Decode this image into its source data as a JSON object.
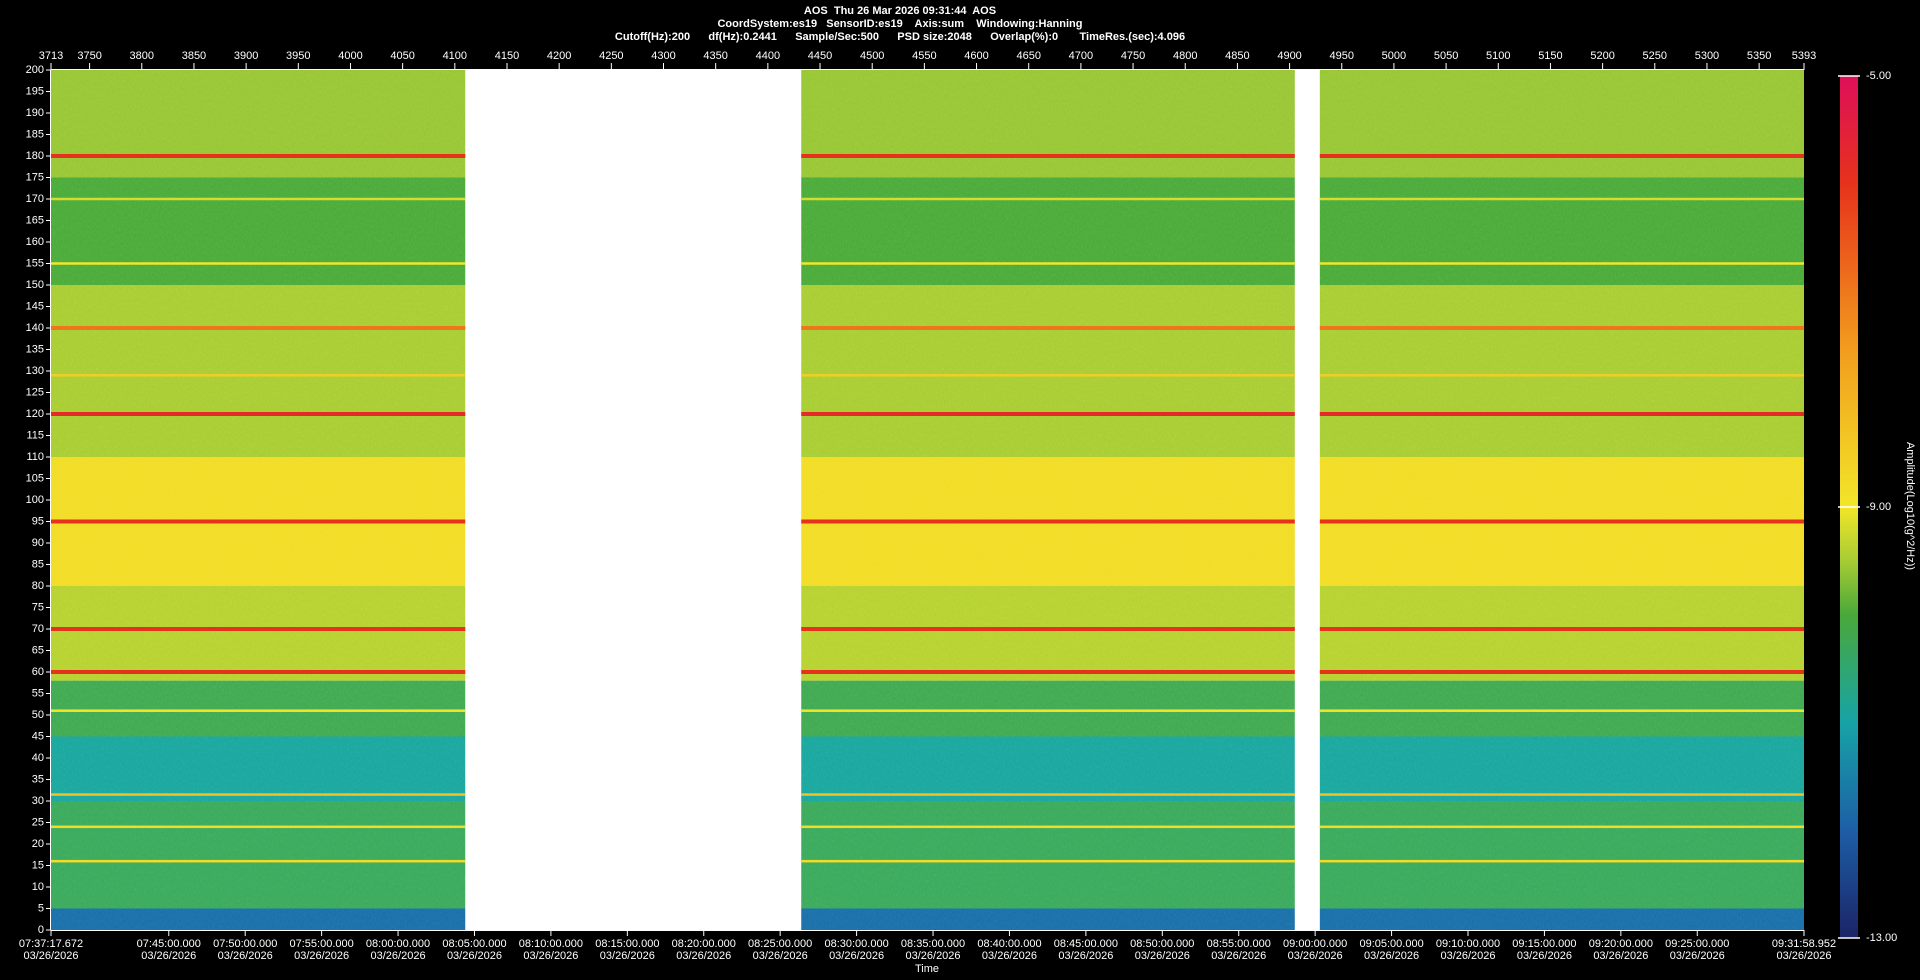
{
  "chart_data": {
    "type": "spectrogram",
    "title": "AOS  Thu 26 Mar 2026 09:31:44  AOS",
    "subtitle": [
      "CoordSystem:es19   SensorID:es19    Axis:sum    Windowing:Hanning",
      "Cutoff(Hz):200      df(Hz):0.2441      Sample/Sec:500      PSD size:2048      Overlap(%):0       TimeRes.(sec):4.096"
    ],
    "xlabel": "Time",
    "colorbar_label": "Amplitude(Log10(g^2/Hz))",
    "xlim": [
      3713,
      5393
    ],
    "xticks": [
      3713,
      3750,
      3800,
      3850,
      3900,
      3950,
      4000,
      4050,
      4100,
      4150,
      4200,
      4250,
      4300,
      4350,
      4400,
      4450,
      4500,
      4550,
      4600,
      4650,
      4700,
      4750,
      4800,
      4850,
      4900,
      4950,
      5000,
      5050,
      5100,
      5150,
      5200,
      5250,
      5300,
      5350,
      5393
    ],
    "x2lim": [
      27437.672,
      34318.952
    ],
    "x2ticks": [
      {
        "value": 27437.672,
        "label": [
          "07:37:17.672",
          "03/26/2026"
        ]
      },
      {
        "value": 27900,
        "label": [
          "07:45:00.000",
          "03/26/2026"
        ]
      },
      {
        "value": 28200,
        "label": [
          "07:50:00.000",
          "03/26/2026"
        ]
      },
      {
        "value": 28500,
        "label": [
          "07:55:00.000",
          "03/26/2026"
        ]
      },
      {
        "value": 28800,
        "label": [
          "08:00:00.000",
          "03/26/2026"
        ]
      },
      {
        "value": 29100,
        "label": [
          "08:05:00.000",
          "03/26/2026"
        ]
      },
      {
        "value": 29400,
        "label": [
          "08:10:00.000",
          "03/26/2026"
        ]
      },
      {
        "value": 29700,
        "label": [
          "08:15:00.000",
          "03/26/2026"
        ]
      },
      {
        "value": 30000,
        "label": [
          "08:20:00.000",
          "03/26/2026"
        ]
      },
      {
        "value": 30300,
        "label": [
          "08:25:00.000",
          "03/26/2026"
        ]
      },
      {
        "value": 30600,
        "label": [
          "08:30:00.000",
          "03/26/2026"
        ]
      },
      {
        "value": 30900,
        "label": [
          "08:35:00.000",
          "03/26/2026"
        ]
      },
      {
        "value": 31200,
        "label": [
          "08:40:00.000",
          "03/26/2026"
        ]
      },
      {
        "value": 31500,
        "label": [
          "08:45:00.000",
          "03/26/2026"
        ]
      },
      {
        "value": 31800,
        "label": [
          "08:50:00.000",
          "03/26/2026"
        ]
      },
      {
        "value": 32100,
        "label": [
          "08:55:00.000",
          "03/26/2026"
        ]
      },
      {
        "value": 32400,
        "label": [
          "09:00:00.000",
          "03/26/2026"
        ]
      },
      {
        "value": 32700,
        "label": [
          "09:05:00.000",
          "03/26/2026"
        ]
      },
      {
        "value": 33000,
        "label": [
          "09:10:00.000",
          "03/26/2026"
        ]
      },
      {
        "value": 33300,
        "label": [
          "09:15:00.000",
          "03/26/2026"
        ]
      },
      {
        "value": 33600,
        "label": [
          "09:20:00.000",
          "03/26/2026"
        ]
      },
      {
        "value": 33900,
        "label": [
          "09:25:00.000",
          "03/26/2026"
        ]
      },
      {
        "value": 34318.952,
        "label": [
          "09:31:58.952",
          "03/26/2026"
        ]
      }
    ],
    "ylim": [
      0,
      200
    ],
    "yticks": [
      0,
      5,
      10,
      15,
      20,
      25,
      30,
      35,
      40,
      45,
      50,
      55,
      60,
      65,
      70,
      75,
      80,
      85,
      90,
      95,
      100,
      105,
      110,
      115,
      120,
      125,
      130,
      135,
      140,
      145,
      150,
      155,
      160,
      165,
      170,
      175,
      180,
      185,
      190,
      195,
      200
    ],
    "clim": [
      -13,
      -5
    ],
    "cticks": [
      {
        "value": -5,
        "label": "-5.00"
      },
      {
        "value": -9,
        "label": "-9.00"
      },
      {
        "value": -13,
        "label": "-13.00"
      }
    ],
    "colormap": [
      {
        "value": -13,
        "color": "#1b2466"
      },
      {
        "value": -12,
        "color": "#1d5ea6"
      },
      {
        "value": -11,
        "color": "#17a3a6"
      },
      {
        "value": -10,
        "color": "#4aa83a"
      },
      {
        "value": -9.5,
        "color": "#a6cc34"
      },
      {
        "value": -9,
        "color": "#f2e629"
      },
      {
        "value": -7.5,
        "color": "#f29a1d"
      },
      {
        "value": -6,
        "color": "#e6321c"
      },
      {
        "value": -5,
        "color": "#de0f5a"
      }
    ],
    "segments": [
      [
        3713,
        4110
      ],
      [
        4432,
        4905
      ],
      [
        4929,
        5393
      ]
    ],
    "bands": [
      {
        "from": 0,
        "to": 5,
        "value": -11.8
      },
      {
        "from": 5,
        "to": 30,
        "value": -10.3
      },
      {
        "from": 30,
        "to": 45,
        "value": -10.9
      },
      {
        "from": 45,
        "to": 58,
        "value": -10.2
      },
      {
        "from": 58,
        "to": 80,
        "value": -9.4
      },
      {
        "from": 80,
        "to": 110,
        "value": -8.8
      },
      {
        "from": 110,
        "to": 150,
        "value": -9.5
      },
      {
        "from": 150,
        "to": 175,
        "value": -10
      },
      {
        "from": 175,
        "to": 200,
        "value": -9.6
      }
    ],
    "tones": {
      "frequencies": [
        16,
        24,
        31.5,
        51,
        60,
        70,
        95,
        120,
        129,
        140,
        155,
        170,
        180
      ],
      "values": [
        -8.8,
        -8.8,
        -8.3,
        -9,
        -6,
        -6,
        -6,
        -5.8,
        -8.5,
        -7,
        -9,
        -9.2,
        -6
      ]
    }
  }
}
